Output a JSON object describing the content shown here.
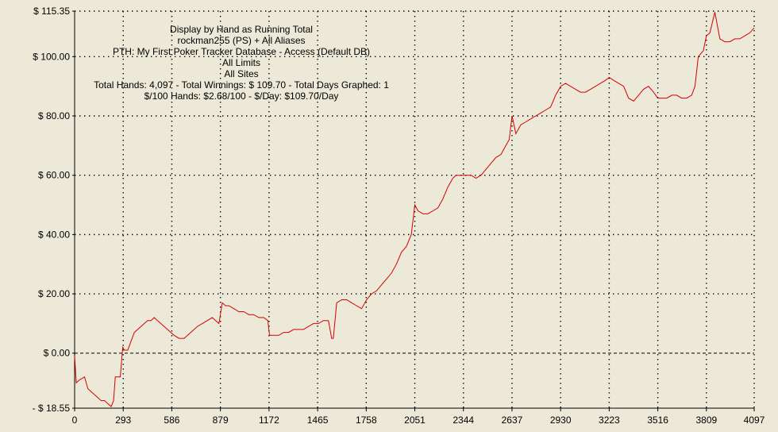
{
  "colors": {
    "background": "#ece9d8",
    "line": "#d40000",
    "grid": "#000000",
    "axis": "#000000"
  },
  "header": {
    "lines": [
      "Display by Hand as Running Total",
      "rockman255 (PS) + All Aliases",
      "PTH: My First Poker Tracker Database - Access (Default DB)",
      "All Limits",
      "All Sites",
      "Total Hands: 4,097 - Total Winnings: $ 109.70 - Total Days Graphed: 1",
      "$/100 Hands: $2.68/100 - $/Day: $109.70/Day"
    ]
  },
  "chart_data": {
    "type": "line",
    "title": "",
    "xlabel": "",
    "ylabel": "",
    "xlim": [
      0,
      4097
    ],
    "ylim": [
      -18.55,
      115.35
    ],
    "x_ticks": [
      0,
      293,
      586,
      879,
      1172,
      1465,
      1758,
      2051,
      2344,
      2637,
      2930,
      3223,
      3516,
      3809,
      4097
    ],
    "x_tick_labels": [
      "0",
      "293",
      "586",
      "879",
      "1172",
      "1465",
      "1758",
      "2051",
      "2344",
      "2637",
      "2930",
      "3223",
      "3516",
      "3809",
      "4097"
    ],
    "y_ticks": [
      -18.55,
      0,
      20,
      40,
      60,
      80,
      100,
      115.35
    ],
    "y_tick_labels": [
      "- $ 18.55",
      "$ 0.00",
      "$ 20.00",
      "$ 40.00",
      "$ 60.00",
      "$ 80.00",
      "$ 100.00",
      "$ 115.35"
    ],
    "grid": true,
    "zero_line": true,
    "series": [
      {
        "x": [
          0,
          10,
          30,
          60,
          80,
          100,
          120,
          140,
          160,
          180,
          200,
          220,
          235,
          245,
          260,
          275,
          290,
          300,
          320,
          340,
          360,
          380,
          400,
          420,
          440,
          460,
          480,
          500,
          520,
          540,
          560,
          580,
          600,
          630,
          660,
          700,
          740,
          770,
          800,
          830,
          850,
          870,
          890,
          910,
          930,
          960,
          990,
          1020,
          1050,
          1080,
          1110,
          1140,
          1165,
          1175,
          1200,
          1230,
          1260,
          1290,
          1320,
          1350,
          1380,
          1410,
          1440,
          1470,
          1500,
          1530,
          1550,
          1560,
          1580,
          1610,
          1640,
          1670,
          1700,
          1730,
          1760,
          1790,
          1820,
          1850,
          1880,
          1910,
          1940,
          1970,
          2000,
          2030,
          2051,
          2070,
          2100,
          2130,
          2160,
          2190,
          2220,
          2250,
          2280,
          2300,
          2330,
          2360,
          2390,
          2420,
          2450,
          2480,
          2510,
          2540,
          2570,
          2600,
          2620,
          2637,
          2660,
          2690,
          2720,
          2750,
          2780,
          2810,
          2840,
          2870,
          2900,
          2930,
          2960,
          2990,
          3020,
          3050,
          3080,
          3110,
          3140,
          3170,
          3200,
          3223,
          3250,
          3280,
          3310,
          3340,
          3370,
          3400,
          3430,
          3460,
          3490,
          3516,
          3540,
          3570,
          3600,
          3630,
          3660,
          3690,
          3720,
          3740,
          3760,
          3790,
          3809,
          3830,
          3860,
          3890,
          3920,
          3950,
          3980,
          4010,
          4040,
          4070,
          4097
        ],
        "y": [
          -1,
          -10,
          -9,
          -8,
          -12,
          -13,
          -14,
          -15,
          -16,
          -16,
          -17,
          -18,
          -16,
          -8,
          -8,
          -8,
          2,
          1,
          1,
          4,
          7,
          8,
          9,
          10,
          11,
          11,
          12,
          11,
          10,
          9,
          8,
          7,
          6,
          5,
          5,
          7,
          9,
          10,
          11,
          12,
          11,
          10,
          17,
          16,
          16,
          15,
          14,
          14,
          13,
          13,
          12,
          12,
          11,
          6,
          6,
          6,
          7,
          7,
          8,
          8,
          8,
          9,
          10,
          10,
          11,
          11,
          5,
          5,
          17,
          18,
          18,
          17,
          16,
          15,
          18,
          20,
          21,
          23,
          25,
          27,
          30,
          34,
          36,
          40,
          50,
          48,
          47,
          47,
          48,
          49,
          52,
          56,
          59,
          60,
          60,
          60,
          60,
          59,
          60,
          62,
          64,
          66,
          67,
          70,
          72,
          80,
          74,
          77,
          78,
          79,
          80,
          81,
          82,
          83,
          87,
          90,
          91,
          90,
          89,
          88,
          88,
          89,
          90,
          91,
          92,
          93,
          92,
          91,
          90,
          86,
          85,
          87,
          89,
          90,
          88,
          86,
          86,
          86,
          87,
          87,
          86,
          86,
          87,
          90,
          100,
          102,
          107,
          108,
          115,
          106,
          105,
          105,
          106,
          106,
          107,
          108,
          109.7
        ]
      }
    ]
  }
}
